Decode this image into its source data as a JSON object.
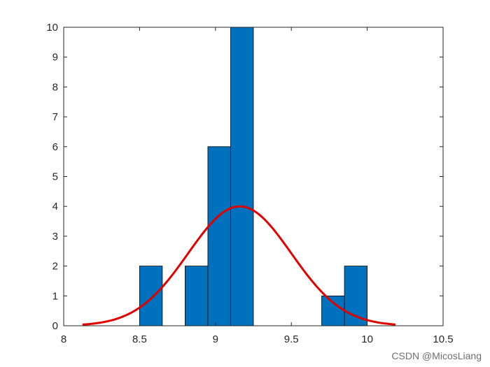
{
  "chart_data": {
    "type": "bar",
    "title": "",
    "xlabel": "",
    "ylabel": "",
    "xlim": [
      8,
      10.5
    ],
    "ylim": [
      0,
      10
    ],
    "x_ticks": [
      8,
      8.5,
      9,
      9.5,
      10,
      10.5
    ],
    "x_tick_labels": [
      "8",
      "8.5",
      "9",
      "9.5",
      "10",
      "10.5"
    ],
    "y_ticks": [
      0,
      1,
      2,
      3,
      4,
      5,
      6,
      7,
      8,
      9,
      10
    ],
    "y_tick_labels": [
      "0",
      "1",
      "2",
      "3",
      "4",
      "5",
      "6",
      "7",
      "8",
      "9",
      "10"
    ],
    "grid": false,
    "bin_width": 0.15,
    "bins": [
      {
        "x0": 8.5,
        "x1": 8.65,
        "count": 2
      },
      {
        "x0": 8.8,
        "x1": 8.95,
        "count": 2
      },
      {
        "x0": 8.95,
        "x1": 9.1,
        "count": 6
      },
      {
        "x0": 9.1,
        "x1": 9.25,
        "count": 10
      },
      {
        "x0": 9.7,
        "x1": 9.85,
        "count": 1
      },
      {
        "x0": 9.85,
        "x1": 10.0,
        "count": 2
      }
    ],
    "bar_color": "#0072BD",
    "fit_curve": {
      "type": "normal",
      "mean": 9.16,
      "sigma": 0.34,
      "peak": 4.0,
      "x_range": [
        8.13,
        10.18
      ],
      "color": "#E00000"
    }
  },
  "watermark": "CSDN @MicosLiang"
}
